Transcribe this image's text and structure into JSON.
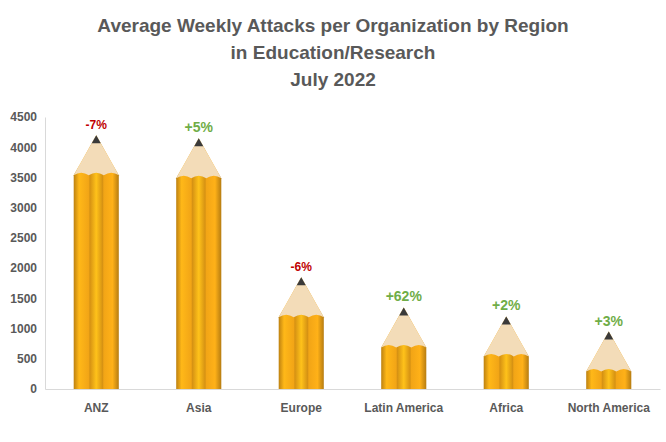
{
  "chart_data": {
    "type": "bar",
    "title": [
      "Average Weekly Attacks per Organization by Region",
      "in Education/Research",
      "July 2022"
    ],
    "categories": [
      "ANZ",
      "Asia",
      "Europe",
      "Latin America",
      "Africa",
      "North America"
    ],
    "values": [
      4200,
      4150,
      1850,
      1350,
      1200,
      950
    ],
    "changes": [
      -7,
      5,
      -6,
      62,
      2,
      3
    ],
    "change_labels": [
      "-7%",
      "+5%",
      "-6%",
      "+62%",
      "+2%",
      "+3%"
    ],
    "color": "#f2a516",
    "ylim": [
      0,
      4500
    ],
    "yticks": [
      0,
      500,
      1000,
      1500,
      2000,
      2500,
      3000,
      3500,
      4000,
      4500
    ],
    "grid": false
  }
}
